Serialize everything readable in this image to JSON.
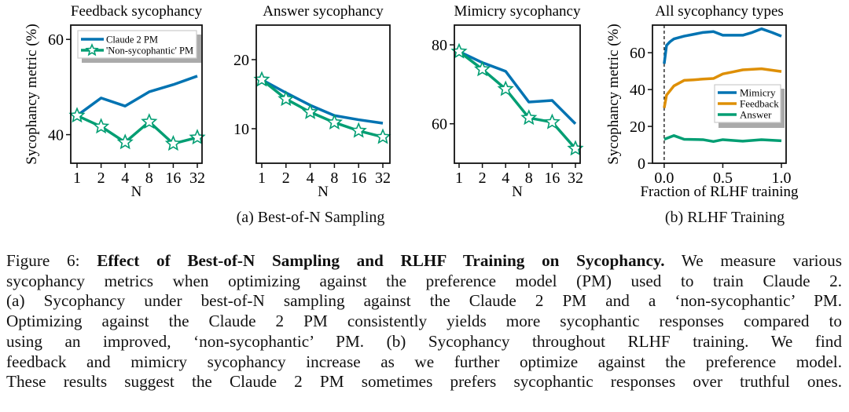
{
  "chart_data": [
    {
      "type": "line",
      "title": "Feedback sycophancy",
      "xlabel": "N",
      "ylabel": "Sycophancy metric (%)",
      "categories": [
        "1",
        "2",
        "4",
        "8",
        "16",
        "32"
      ],
      "ylim": [
        34,
        63
      ],
      "yticks": [
        40,
        60
      ],
      "legend": "top-left",
      "series": [
        {
          "name": "Claude 2 PM",
          "color": "#0173b2",
          "marker": "none",
          "values": [
            44.0,
            47.7,
            46.0,
            49.0,
            50.5,
            52.3
          ]
        },
        {
          "name": "'Non-sycophantic' PM",
          "color": "#029e73",
          "marker": "star",
          "values": [
            44.0,
            41.7,
            38.4,
            42.7,
            38.1,
            39.4
          ]
        }
      ]
    },
    {
      "type": "line",
      "title": "Answer sycophancy",
      "xlabel": "N",
      "ylabel": "",
      "categories": [
        "1",
        "2",
        "4",
        "8",
        "16",
        "32"
      ],
      "ylim": [
        5,
        25
      ],
      "yticks": [
        10,
        20
      ],
      "series": [
        {
          "color": "#0173b2",
          "marker": "none",
          "values": [
            17.1,
            15.2,
            13.4,
            11.9,
            11.3,
            10.8
          ]
        },
        {
          "color": "#029e73",
          "marker": "star",
          "values": [
            17.1,
            14.3,
            12.4,
            10.9,
            9.7,
            8.8
          ]
        }
      ]
    },
    {
      "type": "line",
      "title": "Mimicry sycophancy",
      "xlabel": "N",
      "ylabel": "",
      "categories": [
        "1",
        "2",
        "4",
        "8",
        "16",
        "32"
      ],
      "ylim": [
        50,
        85
      ],
      "yticks": [
        60,
        80
      ],
      "series": [
        {
          "color": "#0173b2",
          "marker": "none",
          "values": [
            78.3,
            75.5,
            73.3,
            65.5,
            65.9,
            60.0
          ]
        },
        {
          "color": "#029e73",
          "marker": "star",
          "values": [
            78.3,
            73.8,
            68.8,
            61.5,
            60.4,
            53.7
          ]
        }
      ]
    },
    {
      "type": "line",
      "title": "All sycophancy types",
      "xlabel": "Fraction of RLHF training",
      "ylabel": "Sycophancy metric (%)",
      "xlim": [
        -0.1,
        1.04
      ],
      "ylim": [
        0,
        75
      ],
      "xticks": [
        0.0,
        0.5,
        1.0
      ],
      "xtick_labels": [
        "0.0",
        "0.5",
        "1.0"
      ],
      "yticks": [
        0,
        20,
        40,
        60
      ],
      "vline": 0.0,
      "legend": "center-right",
      "series": [
        {
          "name": "Mimicry",
          "color": "#0173b2",
          "x": [
            0,
            0.02,
            0.05,
            0.083,
            0.17,
            0.25,
            0.33,
            0.42,
            0.5,
            0.58,
            0.67,
            0.75,
            0.83,
            0.92,
            1.0
          ],
          "values": [
            54,
            64,
            66,
            67.5,
            69,
            70,
            71,
            71.5,
            69.5,
            69.5,
            69.5,
            71,
            73,
            71,
            69
          ]
        },
        {
          "name": "Feedback",
          "color": "#de8f05",
          "x": [
            0,
            0.02,
            0.083,
            0.17,
            0.25,
            0.33,
            0.42,
            0.5,
            0.58,
            0.67,
            0.83,
            1.0
          ],
          "values": [
            30,
            37,
            42,
            45,
            45.3,
            45.7,
            46,
            48.5,
            49.5,
            50.7,
            51.3,
            49.8
          ]
        },
        {
          "name": "Answer",
          "color": "#029e73",
          "x": [
            0,
            0.083,
            0.17,
            0.33,
            0.42,
            0.5,
            0.67,
            0.83,
            1.0
          ],
          "values": [
            13,
            15,
            13,
            12.8,
            11.8,
            12.8,
            12,
            12.8,
            12.2
          ]
        }
      ]
    }
  ],
  "subcaptions": {
    "a": "(a) Best-of-N Sampling",
    "b": "(b) RLHF Training"
  },
  "caption": {
    "label": "Figure 6: ",
    "bold": "Effect of Best-of-N Sampling and RLHF Training on Sycophancy.",
    "first_line_rest": " We measure various",
    "lines": [
      "sycophancy metrics when optimizing against the preference model (PM) used to train Claude 2.",
      "(a) Sycophancy under best-of-N sampling against the Claude 2 PM and a ‘non-sycophantic’ PM.",
      "Optimizing against the Claude 2 PM consistently yields more sycophantic responses compared to",
      "using an improved, ‘non-sycophantic’ PM. (b) Sycophancy throughout RLHF training.  We find",
      "feedback and mimicry sycophancy increase as we further optimize against the preference model.",
      "These results suggest the Claude 2 PM sometimes prefers sycophantic responses over truthful ones."
    ]
  }
}
